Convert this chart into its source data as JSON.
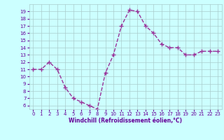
{
  "x": [
    0,
    1,
    2,
    3,
    4,
    5,
    6,
    7,
    8,
    9,
    10,
    11,
    12,
    13,
    14,
    15,
    16,
    17,
    18,
    19,
    20,
    21,
    22,
    23
  ],
  "y": [
    11,
    11,
    12,
    11,
    8.5,
    7,
    6.5,
    6,
    5.5,
    10.5,
    13,
    17,
    19.2,
    19,
    17,
    16,
    14.5,
    14,
    14,
    13,
    13,
    13.5,
    13.5,
    13.5
  ],
  "line_color": "#993399",
  "marker": "+",
  "marker_size": 4,
  "bg_color": "#ccffff",
  "grid_color": "#aacccc",
  "xlabel": "Windchill (Refroidissement éolien,°C)",
  "xlabel_color": "#660099",
  "tick_color": "#660099",
  "ylim": [
    5.5,
    20
  ],
  "xlim": [
    -0.5,
    23.5
  ],
  "yticks": [
    6,
    7,
    8,
    9,
    10,
    11,
    12,
    13,
    14,
    15,
    16,
    17,
    18,
    19
  ],
  "xticks": [
    0,
    1,
    2,
    3,
    4,
    5,
    6,
    7,
    8,
    9,
    10,
    11,
    12,
    13,
    14,
    15,
    16,
    17,
    18,
    19,
    20,
    21,
    22,
    23
  ],
  "linewidth": 1.0,
  "linestyle": "--"
}
